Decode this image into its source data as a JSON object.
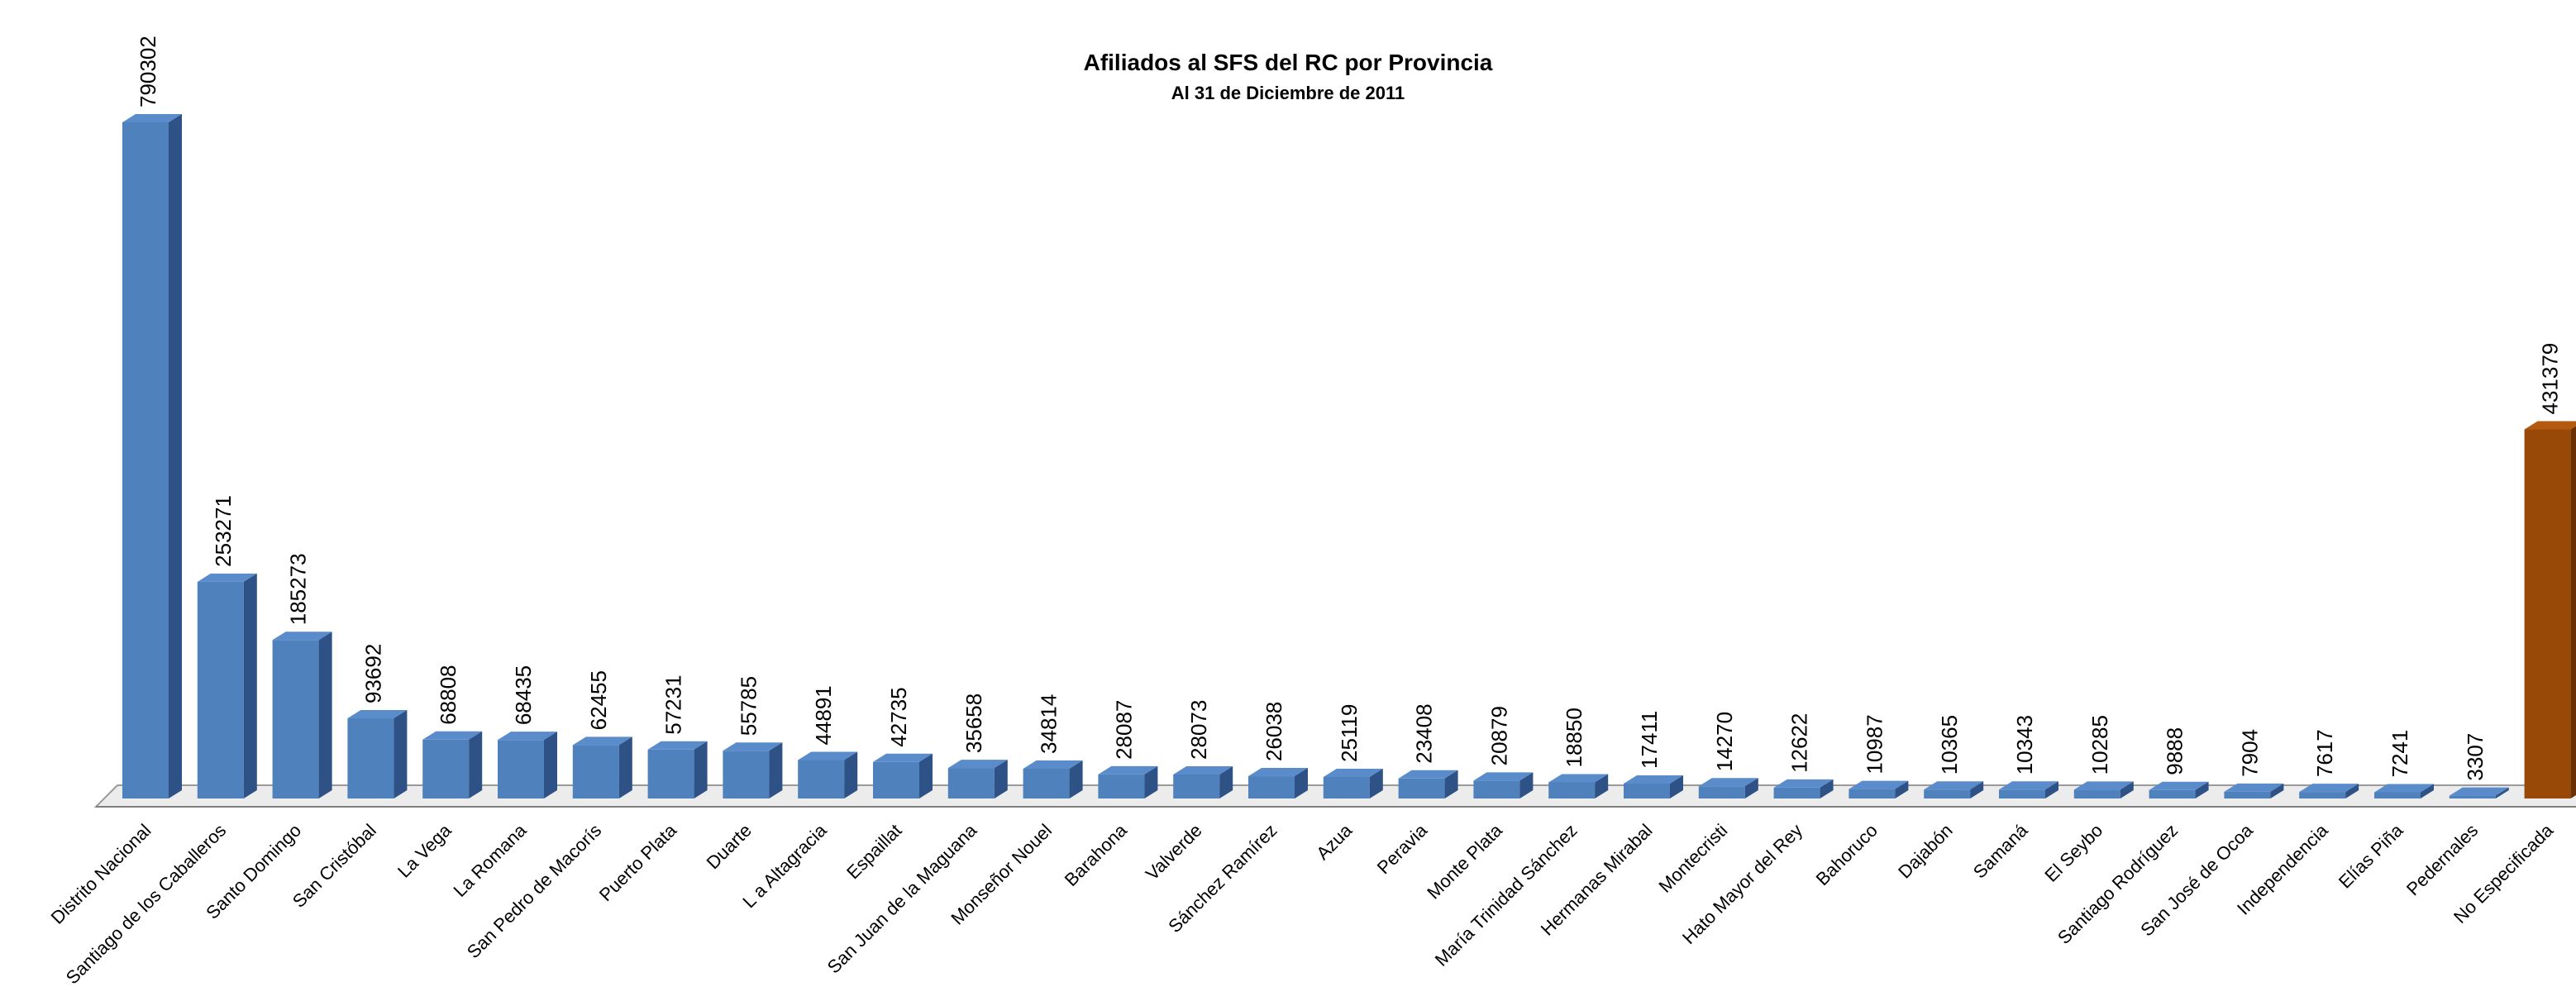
{
  "chart_data": {
    "type": "bar",
    "title": "Afiliados al SFS del RC por Provincia",
    "subtitle": "Al 31 de Diciembre de 2011",
    "categories": [
      "Distrito Nacional",
      "Santiago de los Caballeros",
      "Santo Domingo",
      "San Cristóbal",
      "La Vega",
      "La Romana",
      "San Pedro de Macorís",
      "Puerto Plata",
      "Duarte",
      "L a Altagracia",
      "Espaillat",
      "San Juan de la Maguana",
      "Monseñor Nouel",
      "Barahona",
      "Valverde",
      "Sánchez Ramírez",
      "Azua",
      "Peravia",
      "Monte Plata",
      "María Trinidad Sánchez",
      "Hermanas Mirabal",
      "Montecristi",
      "Hato Mayor del Rey",
      "Bahoruco",
      "Dajabón",
      "Samaná",
      "El Seybo",
      "Santiago Rodríguez",
      "San José de Ocoa",
      "Independencia",
      "Elías Piña",
      "Pedernales",
      "No Especificada"
    ],
    "values": [
      790302,
      253271,
      185273,
      93692,
      68808,
      68435,
      62455,
      57231,
      55785,
      44891,
      42735,
      35658,
      34814,
      28087,
      28073,
      26038,
      25119,
      23408,
      20879,
      18850,
      17411,
      14270,
      12622,
      10987,
      10365,
      10343,
      10285,
      9888,
      7904,
      7617,
      7241,
      3307,
      431379
    ],
    "value_labels": [
      "790302",
      "253271",
      "185273",
      "93692",
      "68808",
      "68435",
      "62455",
      "57231",
      "55785",
      "44891",
      "42735",
      "35658",
      "34814",
      "28087",
      "28073",
      "26038",
      "25119",
      "23408",
      "20879",
      "18850",
      "17411",
      "14270",
      "12622",
      "10987",
      "10365",
      "10343",
      "10285",
      "9888",
      "7904",
      "7617",
      "7241",
      "3307",
      "431379"
    ],
    "ylim": [
      0,
      790302
    ],
    "grid": false,
    "legend": "none",
    "colors": {
      "default_front": "#4f81bd",
      "default_top": "#5a8ccc",
      "default_side": "#2e5285",
      "highlight_front": "#984807",
      "highlight_top": "#b35a10",
      "highlight_side": "#6b3005",
      "floor": "#ececec",
      "floor_edge": "#9a9a9a"
    },
    "highlight_category": "No Especificada"
  }
}
